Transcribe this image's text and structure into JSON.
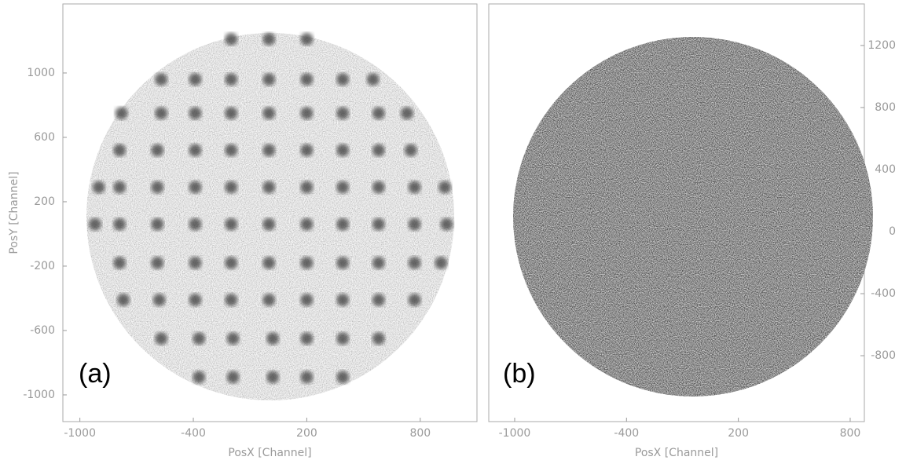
{
  "chart_data": [
    {
      "type": "scatter",
      "annotation": "(a)",
      "xlabel": "PosX [Channel]",
      "ylabel": "PosY [Channel]",
      "xlim": [
        -1090,
        1100
      ],
      "ylim": [
        -1166,
        1429
      ],
      "xticks": [
        -1000,
        -400,
        200,
        800
      ],
      "yticks": [
        -1000,
        -600,
        -200,
        200,
        600,
        1000
      ],
      "color": "#3a3a3a",
      "x": [
        -200,
        0,
        200,
        -570,
        -390,
        -200,
        0,
        200,
        390,
        550,
        -780,
        -570,
        -390,
        -200,
        0,
        200,
        390,
        580,
        730,
        -790,
        -590,
        -390,
        -200,
        0,
        200,
        390,
        580,
        750,
        -900,
        -790,
        -590,
        -390,
        -200,
        0,
        200,
        390,
        580,
        770,
        930,
        -920,
        -790,
        -590,
        -390,
        -200,
        0,
        200,
        390,
        580,
        770,
        940,
        -790,
        -590,
        -390,
        -200,
        0,
        200,
        390,
        580,
        770,
        910,
        -770,
        -580,
        -390,
        -200,
        0,
        200,
        390,
        580,
        770,
        -570,
        -370,
        -190,
        20,
        200,
        390,
        580,
        -370,
        -190,
        20,
        200,
        390
      ],
      "values": [
        1210,
        1210,
        1210,
        960,
        960,
        960,
        960,
        960,
        960,
        960,
        750,
        750,
        750,
        750,
        750,
        750,
        750,
        750,
        750,
        520,
        520,
        520,
        520,
        520,
        520,
        520,
        520,
        520,
        290,
        290,
        290,
        290,
        290,
        290,
        290,
        290,
        290,
        290,
        290,
        60,
        60,
        60,
        60,
        60,
        60,
        60,
        60,
        60,
        60,
        60,
        -180,
        -180,
        -180,
        -180,
        -180,
        -180,
        -180,
        -180,
        -180,
        -180,
        -410,
        -410,
        -410,
        -410,
        -410,
        -410,
        -410,
        -410,
        -410,
        -650,
        -650,
        -650,
        -650,
        -650,
        -650,
        -650,
        -890,
        -890,
        -890,
        -890,
        -890
      ]
    },
    {
      "type": "density",
      "annotation": "(b)",
      "xlabel": "PosX [Channel]",
      "yaxis": "right",
      "xlim": [
        -1139,
        876
      ],
      "ylim": [
        -1225,
        1468
      ],
      "xticks": [
        -1000,
        -400,
        200,
        800
      ],
      "yticks": [
        -800,
        -400,
        0,
        400,
        800,
        1200
      ]
    }
  ]
}
